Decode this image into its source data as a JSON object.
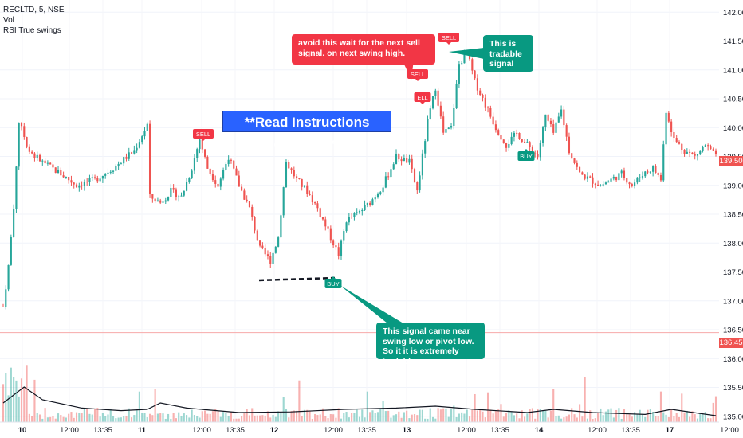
{
  "legend": {
    "symbol": "RECLTD, 5, NSE",
    "vol": "Vol",
    "indicator": "RSI True swings"
  },
  "headline": "**Read Instructions carefully**",
  "callouts": {
    "sell_warning": "avoid this wait for the next sell signal. on next swing high.",
    "tradable": "This is tradable signal",
    "buy_note": "This signal came near swing low or pivot low. So it it is extremely tradable"
  },
  "colors": {
    "up": "#26a69a",
    "down": "#ef5350",
    "sell_callout": "#f23645",
    "tradable_callout": "#089981",
    "headline_bg": "#2962ff",
    "current_price_tag": "#ef5350",
    "hline": "#f7a9a9"
  },
  "signals": [
    {
      "label": "SELL",
      "type": "sell",
      "x": "11 13:35",
      "y": 139.85
    },
    {
      "label": "SELL",
      "type": "sell",
      "x": "13 10:30",
      "y": 140.85
    },
    {
      "label": "ELL",
      "type": "sell",
      "x": "13 10:50",
      "y": 140.5
    },
    {
      "label": "SELL",
      "type": "sell",
      "x": "13 11:20",
      "y": 141.5
    },
    {
      "label": "BUY",
      "type": "buy",
      "x": "12 12:00",
      "y": 137.6
    },
    {
      "label": "BUY",
      "type": "buy",
      "x": "14 10:20",
      "y": 139.6
    }
  ],
  "price_tags": {
    "current": "139.50",
    "line": "136.45"
  },
  "chart_data": {
    "type": "candlestick",
    "title": "RECLTD, 5, NSE",
    "y_axis_ticks": [
      "142.00",
      "141.50",
      "141.00",
      "140.50",
      "140.00",
      "139.50",
      "139.00",
      "138.50",
      "138.00",
      "137.50",
      "137.00",
      "136.50",
      "136.00",
      "135.50",
      "135.00"
    ],
    "ylim": [
      134.9,
      142.1
    ],
    "x_axis_ticks": [
      "10",
      "12:00",
      "13:35",
      "11",
      "12:00",
      "13:35",
      "12",
      "12:00",
      "13:35",
      "13",
      "12:00",
      "13:35",
      "14",
      "12:00",
      "13:35",
      "17",
      "12:00"
    ],
    "horizontal_line": 136.45,
    "last_price": 139.5,
    "close_path": [
      {
        "x": 0,
        "y": 136.9
      },
      {
        "x": 2,
        "y": 137.6
      },
      {
        "x": 4,
        "y": 138.6
      },
      {
        "x": 6,
        "y": 140.1
      },
      {
        "x": 10,
        "y": 139.6
      },
      {
        "x": 15,
        "y": 139.4
      },
      {
        "x": 22,
        "y": 139.2
      },
      {
        "x": 28,
        "y": 139.0
      },
      {
        "x": 35,
        "y": 139.1
      },
      {
        "x": 42,
        "y": 139.3
      },
      {
        "x": 50,
        "y": 139.6
      },
      {
        "x": 55,
        "y": 140.05
      },
      {
        "x": 56,
        "y": 138.8
      },
      {
        "x": 60,
        "y": 138.7
      },
      {
        "x": 64,
        "y": 138.9
      },
      {
        "x": 68,
        "y": 138.8
      },
      {
        "x": 72,
        "y": 139.3
      },
      {
        "x": 75,
        "y": 139.8
      },
      {
        "x": 78,
        "y": 139.3
      },
      {
        "x": 82,
        "y": 139.0
      },
      {
        "x": 86,
        "y": 139.5
      },
      {
        "x": 90,
        "y": 139.0
      },
      {
        "x": 94,
        "y": 138.6
      },
      {
        "x": 98,
        "y": 137.9
      },
      {
        "x": 102,
        "y": 137.7
      },
      {
        "x": 105,
        "y": 138.1
      },
      {
        "x": 108,
        "y": 139.4
      },
      {
        "x": 112,
        "y": 139.1
      },
      {
        "x": 116,
        "y": 138.9
      },
      {
        "x": 120,
        "y": 138.6
      },
      {
        "x": 124,
        "y": 138.2
      },
      {
        "x": 128,
        "y": 137.8
      },
      {
        "x": 131,
        "y": 138.4
      },
      {
        "x": 135,
        "y": 138.5
      },
      {
        "x": 140,
        "y": 138.7
      },
      {
        "x": 145,
        "y": 139.0
      },
      {
        "x": 150,
        "y": 139.5
      },
      {
        "x": 155,
        "y": 139.4
      },
      {
        "x": 158,
        "y": 138.9
      },
      {
        "x": 162,
        "y": 140.1
      },
      {
        "x": 165,
        "y": 140.7
      },
      {
        "x": 168,
        "y": 139.9
      },
      {
        "x": 171,
        "y": 140.0
      },
      {
        "x": 174,
        "y": 141.1
      },
      {
        "x": 177,
        "y": 141.3
      },
      {
        "x": 180,
        "y": 140.8
      },
      {
        "x": 184,
        "y": 140.4
      },
      {
        "x": 188,
        "y": 140.0
      },
      {
        "x": 192,
        "y": 139.7
      },
      {
        "x": 196,
        "y": 139.9
      },
      {
        "x": 200,
        "y": 139.7
      },
      {
        "x": 204,
        "y": 139.5
      },
      {
        "x": 207,
        "y": 140.2
      },
      {
        "x": 210,
        "y": 139.9
      },
      {
        "x": 213,
        "y": 140.3
      },
      {
        "x": 216,
        "y": 139.6
      },
      {
        "x": 220,
        "y": 139.2
      },
      {
        "x": 224,
        "y": 139.1
      },
      {
        "x": 228,
        "y": 139.0
      },
      {
        "x": 232,
        "y": 139.1
      },
      {
        "x": 236,
        "y": 139.2
      },
      {
        "x": 240,
        "y": 139.0
      },
      {
        "x": 244,
        "y": 139.2
      },
      {
        "x": 248,
        "y": 139.3
      },
      {
        "x": 251,
        "y": 139.1
      },
      {
        "x": 253,
        "y": 140.3
      },
      {
        "x": 256,
        "y": 139.8
      },
      {
        "x": 260,
        "y": 139.6
      },
      {
        "x": 264,
        "y": 139.5
      },
      {
        "x": 268,
        "y": 139.7
      },
      {
        "x": 272,
        "y": 139.5
      }
    ],
    "volume_avg_path": [
      {
        "x": 0,
        "y": 0.3
      },
      {
        "x": 8,
        "y": 0.55
      },
      {
        "x": 15,
        "y": 0.35
      },
      {
        "x": 30,
        "y": 0.22
      },
      {
        "x": 45,
        "y": 0.18
      },
      {
        "x": 55,
        "y": 0.2
      },
      {
        "x": 60,
        "y": 0.3
      },
      {
        "x": 70,
        "y": 0.22
      },
      {
        "x": 90,
        "y": 0.15
      },
      {
        "x": 110,
        "y": 0.16
      },
      {
        "x": 130,
        "y": 0.2
      },
      {
        "x": 150,
        "y": 0.22
      },
      {
        "x": 165,
        "y": 0.25
      },
      {
        "x": 180,
        "y": 0.2
      },
      {
        "x": 200,
        "y": 0.15
      },
      {
        "x": 210,
        "y": 0.2
      },
      {
        "x": 225,
        "y": 0.15
      },
      {
        "x": 245,
        "y": 0.12
      },
      {
        "x": 255,
        "y": 0.2
      },
      {
        "x": 272,
        "y": 0.1
      }
    ]
  }
}
